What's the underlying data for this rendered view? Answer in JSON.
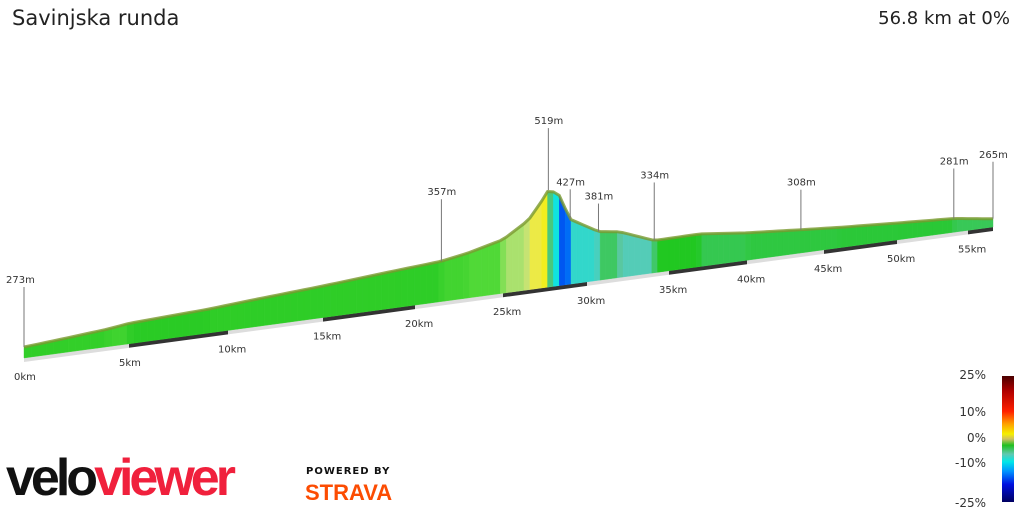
{
  "header": {
    "title": "Savinjska runda",
    "summary": "56.8 km at 0%"
  },
  "chart_data": {
    "type": "area",
    "title": "Savinjska runda",
    "xlabel": "",
    "ylabel": "",
    "x_unit": "km",
    "y_unit": "m",
    "x_ticks": [
      "0km",
      "5km",
      "10km",
      "15km",
      "20km",
      "25km",
      "30km",
      "35km",
      "40km",
      "45km",
      "50km",
      "55km"
    ],
    "x_tick_values": [
      0,
      5,
      10,
      15,
      20,
      25,
      30,
      35,
      40,
      45,
      50,
      55
    ],
    "profile": [
      [
        0,
        273
      ],
      [
        2,
        282
      ],
      [
        4,
        292
      ],
      [
        5,
        300
      ],
      [
        7,
        305
      ],
      [
        9,
        310
      ],
      [
        11,
        318
      ],
      [
        13,
        325
      ],
      [
        15,
        332
      ],
      [
        17,
        340
      ],
      [
        19,
        348
      ],
      [
        21.5,
        357
      ],
      [
        23,
        370
      ],
      [
        25,
        395
      ],
      [
        26.5,
        440
      ],
      [
        27.3,
        490
      ],
      [
        27.7,
        519
      ],
      [
        28.3,
        505
      ],
      [
        29,
        427
      ],
      [
        30.7,
        381
      ],
      [
        32,
        372
      ],
      [
        34.1,
        334
      ],
      [
        37,
        335
      ],
      [
        40,
        320
      ],
      [
        43.5,
        308
      ],
      [
        46,
        300
      ],
      [
        50,
        290
      ],
      [
        54,
        281
      ],
      [
        56.8,
        265
      ]
    ],
    "annotations": [
      {
        "km": 0,
        "label": "273m"
      },
      {
        "km": 21.5,
        "label": "357m"
      },
      {
        "km": 27.7,
        "label": "519m"
      },
      {
        "km": 29,
        "label": "427m"
      },
      {
        "km": 30.7,
        "label": "381m"
      },
      {
        "km": 34.1,
        "label": "334m"
      },
      {
        "km": 43.5,
        "label": "308m"
      },
      {
        "km": 54,
        "label": "281m"
      },
      {
        "km": 56.8,
        "label": "265m"
      }
    ],
    "color_scale": {
      "labels": [
        "25%",
        "10%",
        "0%",
        "-10%",
        "-25%"
      ],
      "values": [
        25,
        10,
        0,
        -10,
        -25
      ]
    }
  },
  "branding": {
    "logo_part1": "velo",
    "logo_part2": "viewer",
    "powered_by": "POWERED BY",
    "strava": "STRAVA"
  }
}
